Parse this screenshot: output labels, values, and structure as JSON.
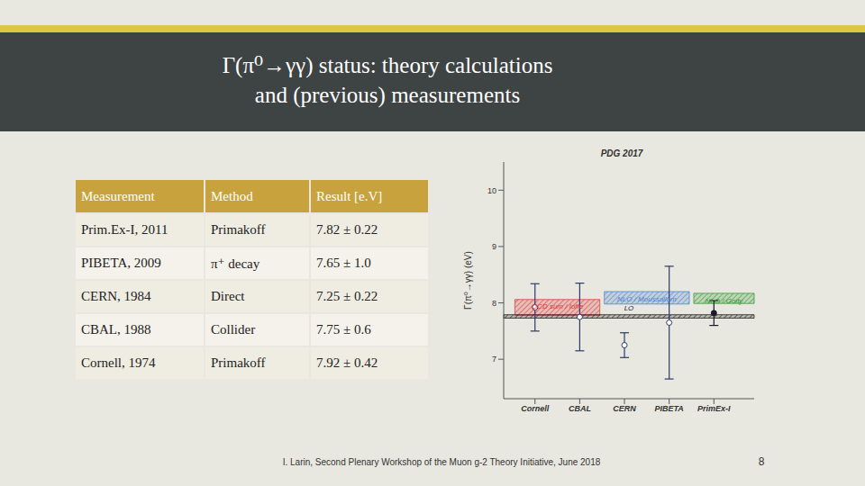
{
  "slide": {
    "title": [
      "Γ(π⁰→γγ) status: theory calculations",
      "and (previous) measurements"
    ],
    "footer": "I. Larin, Second Plenary Workshop of the Muon g-2 Theory Initiative, June 2018",
    "page_number": 8
  },
  "table": {
    "header": [
      "Measurement",
      "Method",
      "Result [e.V]"
    ],
    "rows": [
      [
        "Prim.Ex-I, 2011",
        "Primakoff",
        "7.82 ± 0.22"
      ],
      [
        "PIBETA, 2009",
        "π⁺ decay",
        "7.65 ± 1.0"
      ],
      [
        "CERN, 1984",
        "Direct",
        "7.25 ± 0.22"
      ],
      [
        "CBAL, 1988",
        "Collider",
        "7.75 ± 0.6"
      ],
      [
        "Cornell, 1974",
        "Primakoff",
        "7.92 ± 0.42"
      ]
    ]
  },
  "chart_data": {
    "type": "scatter",
    "title": "PDG 2017",
    "y_label": "Γ(π⁰→γγ) (eV)",
    "categories": [
      "Cornell",
      "CBAL",
      "CERN",
      "PIBETA",
      "PrimEx-I"
    ],
    "ylim": [
      6.3,
      10.5
    ],
    "yticks": [
      7,
      8,
      9,
      10
    ],
    "series": [
      {
        "values": [
          7.92,
          7.75,
          7.25,
          7.65,
          null
        ],
        "errors": [
          0.42,
          0.6,
          0.22,
          1.0,
          null
        ],
        "marker": "open",
        "color": "#2b3a6b"
      },
      {
        "values": [
          null,
          null,
          null,
          null,
          7.82
        ],
        "errors": [
          null,
          null,
          null,
          null,
          0.22
        ],
        "marker": "filled",
        "color": "#1a1a2a"
      }
    ],
    "bands": [
      {
        "label": "QCD sum / Ioffe",
        "range": [
          7.78,
          8.06
        ],
        "color": "#d94040",
        "categories": [
          "Cornell",
          "CBAL"
        ]
      },
      {
        "label": "NLO / Moussallam",
        "range": [
          7.98,
          8.2
        ],
        "color": "#4f86d0",
        "categories": [
          "CERN",
          "PIBETA"
        ]
      },
      {
        "label": "NLO / Goity",
        "range": [
          7.99,
          8.17
        ],
        "color": "#3a9a3a",
        "categories": [
          "PrimEx-I"
        ]
      },
      {
        "label": "LO",
        "range": [
          7.73,
          7.79
        ],
        "color": "#222222"
      }
    ]
  }
}
